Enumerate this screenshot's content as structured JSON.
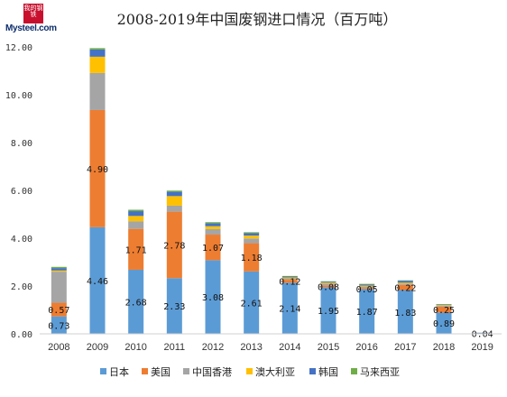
{
  "logo": {
    "seal_text": "我的钢铁",
    "word": "Mysteel.com"
  },
  "chart_data": {
    "type": "bar",
    "stacked": true,
    "title": "2008-2019年中国废钢进口情况（百万吨）",
    "xlabel": "",
    "ylabel": "",
    "ylim": [
      0,
      12
    ],
    "yticks": [
      "0.00",
      "2.00",
      "4.00",
      "6.00",
      "8.00",
      "10.00",
      "12.00"
    ],
    "grid": false,
    "legend_position": "bottom",
    "categories": [
      "2008",
      "2009",
      "2010",
      "2011",
      "2012",
      "2013",
      "2014",
      "2015",
      "2016",
      "2017",
      "2018",
      "2019"
    ],
    "series": [
      {
        "name": "日本",
        "color": "#5b9bd5",
        "values": [
          0.73,
          4.46,
          2.68,
          2.33,
          3.08,
          2.61,
          2.14,
          1.95,
          1.87,
          1.83,
          0.89,
          0.04
        ],
        "labels": [
          "0.73",
          "4.46",
          "2.68",
          "2.33",
          "3.08",
          "2.61",
          "2.14",
          "1.95",
          "1.87",
          "1.83",
          "0.89",
          "0.04"
        ]
      },
      {
        "name": "美国",
        "color": "#ed7d31",
        "values": [
          0.57,
          4.9,
          1.71,
          2.78,
          1.07,
          1.18,
          0.12,
          0.08,
          0.05,
          0.22,
          0.25,
          0.0
        ],
        "labels": [
          "0.57",
          "4.90",
          "1.71",
          "2.78",
          "1.07",
          "1.18",
          "0.12",
          "0.08",
          "0.05",
          "0.22",
          "0.25",
          ""
        ]
      },
      {
        "name": "中国香港",
        "color": "#a5a5a5",
        "values": [
          1.3,
          1.55,
          0.32,
          0.25,
          0.23,
          0.2,
          0.06,
          0.07,
          0.06,
          0.05,
          0.04,
          0.01
        ],
        "labels": [
          "",
          "",
          "",
          "",
          "",
          "",
          "",
          "",
          "",
          "",
          "",
          ""
        ]
      },
      {
        "name": "澳大利亚",
        "color": "#ffc000",
        "values": [
          0.05,
          0.68,
          0.22,
          0.4,
          0.12,
          0.12,
          0.04,
          0.04,
          0.04,
          0.04,
          0.02,
          0.0
        ],
        "labels": [
          "",
          "",
          "",
          "",
          "",
          "",
          "",
          "",
          "",
          "",
          "",
          ""
        ]
      },
      {
        "name": "韩国",
        "color": "#4472c4",
        "values": [
          0.1,
          0.3,
          0.2,
          0.18,
          0.12,
          0.1,
          0.04,
          0.04,
          0.05,
          0.08,
          0.03,
          0.0
        ],
        "labels": [
          "",
          "",
          "",
          "",
          "",
          "",
          "",
          "",
          "",
          "",
          "",
          ""
        ]
      },
      {
        "name": "马来西亚",
        "color": "#70ad47",
        "values": [
          0.05,
          0.06,
          0.06,
          0.05,
          0.05,
          0.04,
          0.02,
          0.02,
          0.02,
          0.02,
          0.01,
          0.0
        ],
        "labels": [
          "",
          "",
          "",
          "",
          "",
          "",
          "",
          "",
          "",
          "",
          "",
          ""
        ]
      }
    ]
  }
}
